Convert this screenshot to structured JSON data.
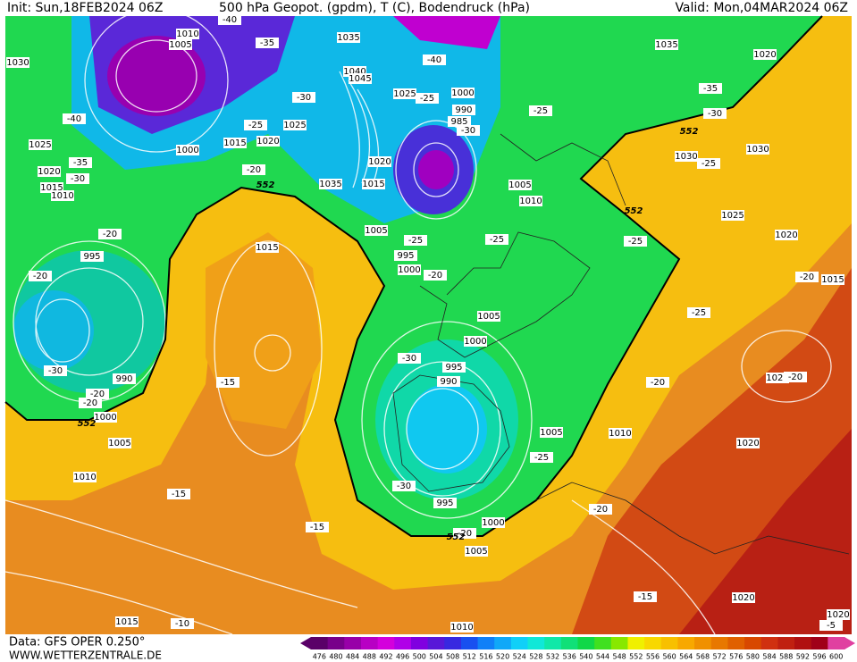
{
  "header": {
    "init": "Init: Sun,18FEB2024 06Z",
    "title": "500 hPa Geopot. (gpdm), T (C), Bodendruck (hPa)",
    "valid": "Valid: Mon,04MAR2024 06Z"
  },
  "footer": {
    "data": "Data: GFS OPER 0.250°",
    "site": "WWW.WETTERZENTRALE.DE"
  },
  "colorbar": {
    "values": [
      476,
      480,
      484,
      488,
      492,
      496,
      500,
      504,
      508,
      512,
      516,
      520,
      524,
      528,
      532,
      536,
      540,
      544,
      548,
      552,
      556,
      560,
      564,
      568,
      572,
      576,
      580,
      584,
      588,
      592,
      596,
      600
    ],
    "colors": [
      "#5a0068",
      "#78008a",
      "#9800a8",
      "#b800c4",
      "#d400dc",
      "#b000e8",
      "#8000e0",
      "#5818d8",
      "#3828e0",
      "#1850f0",
      "#1080f8",
      "#10a8f8",
      "#10d0f8",
      "#10e8d8",
      "#10e8a8",
      "#10e078",
      "#10d848",
      "#40e020",
      "#88e800",
      "#f0f000",
      "#f8d800",
      "#f8c000",
      "#f8a800",
      "#f09000",
      "#e87800",
      "#e06000",
      "#d84800",
      "#d03010",
      "#c02010",
      "#b01010",
      "#a00018",
      "#e040a0"
    ]
  },
  "map_labels": {
    "pressure": [
      1030,
      1025,
      1020,
      1015,
      1010,
      1005,
      1010,
      1000,
      1015,
      1020,
      1025,
      1035,
      1040,
      1045,
      1025,
      1000,
      990,
      985,
      1020,
      1015,
      1035,
      1005,
      1010,
      1005,
      995,
      1000,
      1035,
      1020,
      1030,
      1030,
      1025,
      1020,
      1015,
      1005,
      1000,
      995,
      990,
      990,
      995,
      1000,
      1005,
      1010,
      1015,
      1020,
      1010,
      1005,
      1020,
      995,
      1000,
      1005,
      1010,
      1015,
      1020,
      1020
    ],
    "temperature": [
      -40,
      -35,
      -40,
      -30,
      -25,
      -20,
      -35,
      -30,
      -40,
      -25,
      -30,
      -25,
      -35,
      -30,
      -25,
      -20,
      -20,
      -25,
      -20,
      -25,
      -25,
      -25,
      -20,
      -30,
      -30,
      -20,
      -20,
      -15,
      -20,
      -20,
      -25,
      -30,
      -15,
      -15,
      -20,
      -20,
      -15,
      -10,
      -5
    ],
    "geopotential": [
      552,
      552,
      552,
      552,
      552
    ]
  }
}
